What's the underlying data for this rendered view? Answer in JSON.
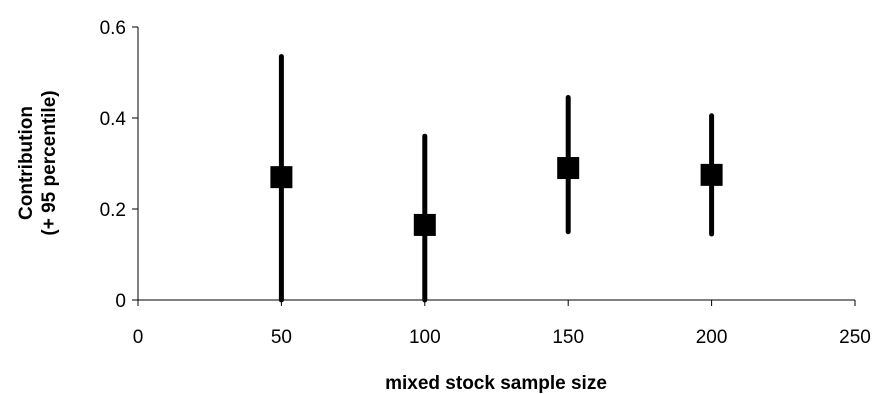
{
  "chart_data": {
    "type": "scatter",
    "title": "",
    "xlabel": "mixed stock sample size",
    "ylabel_lines": [
      "Contribution",
      "(+ 95 percentile)"
    ],
    "xlim": [
      0,
      250
    ],
    "ylim": [
      0,
      0.6
    ],
    "xticks": [
      0,
      50,
      100,
      150,
      200,
      250
    ],
    "xtick_labels": [
      "0",
      "50",
      "100",
      "150",
      "200",
      "250"
    ],
    "yticks": [
      0,
      0.2,
      0.4,
      0.6
    ],
    "ytick_labels": [
      "0",
      "0.2",
      "0.4",
      "0.6"
    ],
    "grid": false,
    "legend": "none",
    "marker": "square",
    "color": "#000000",
    "points": [
      {
        "x": 50,
        "y": 0.27,
        "low": 0.0,
        "high": 0.535
      },
      {
        "x": 100,
        "y": 0.165,
        "low": 0.0,
        "high": 0.36
      },
      {
        "x": 150,
        "y": 0.29,
        "low": 0.15,
        "high": 0.445
      },
      {
        "x": 200,
        "y": 0.275,
        "low": 0.145,
        "high": 0.405
      }
    ]
  }
}
